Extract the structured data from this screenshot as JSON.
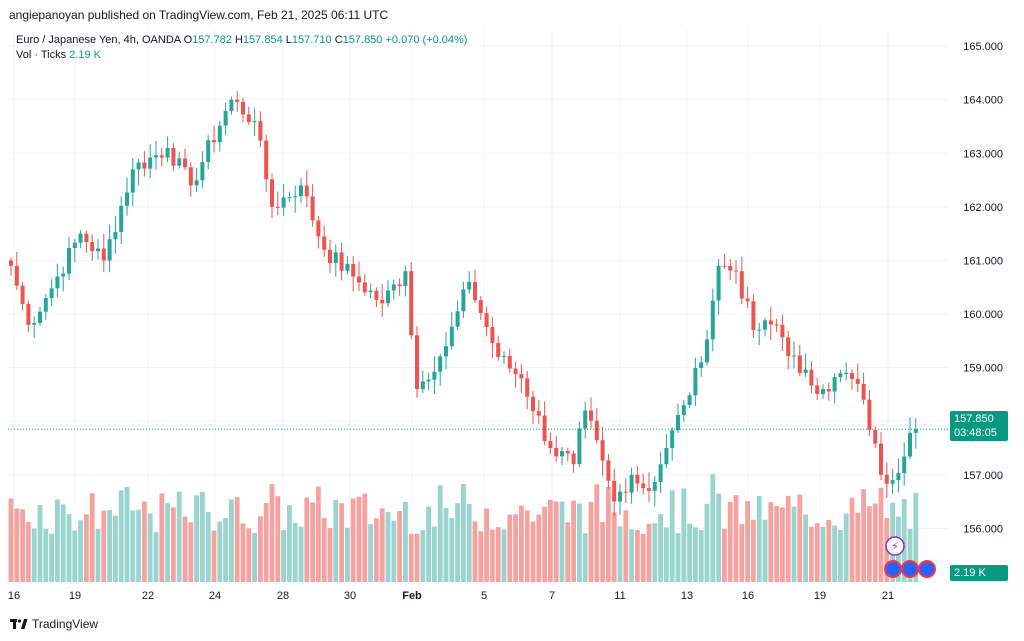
{
  "publisher": "angiepanoyan published on TradingView.com, Feb 21, 2025 06:11 UTC",
  "legend": {
    "symbol": "Euro / Japanese Yen, 4h, OANDA",
    "o_label": "O",
    "o_value": "157.782",
    "h_label": "H",
    "h_value": "157.854",
    "l_label": "L",
    "l_value": "157.710",
    "c_label": "C",
    "c_value": "157.850",
    "change": "+0.070 (+0.04%)",
    "vol_label": "Vol · Ticks",
    "vol_value": "2.19 K"
  },
  "price_tag": {
    "price": "157.850",
    "countdown": "03:48:05"
  },
  "volume_tag": "2.19 K",
  "footer": "TradingView",
  "colors": {
    "up": "#26a69a",
    "down": "#ef5350",
    "vol_up": "#99d4ce",
    "vol_down": "#f5a3a1",
    "accent": "#089981"
  },
  "chart_data": {
    "type": "candlestick",
    "title": "Euro / Japanese Yen, 4h, OANDA",
    "y_ticks": [
      "165.000",
      "164.000",
      "163.000",
      "162.000",
      "161.000",
      "160.000",
      "159.000",
      "158.000",
      "157.000",
      "156.000"
    ],
    "ylim": [
      155.0,
      165.3
    ],
    "x_ticks": [
      "16",
      "19",
      "22",
      "24",
      "28",
      "30",
      "Feb",
      "5",
      "7",
      "11",
      "13",
      "16",
      "19",
      "21"
    ],
    "last_price": 157.85,
    "anchors": [
      [
        0,
        160.9
      ],
      [
        3,
        159.8
      ],
      [
        6,
        160.3
      ],
      [
        12,
        161.5
      ],
      [
        16,
        161.0
      ],
      [
        21,
        162.7
      ],
      [
        27,
        163.1
      ],
      [
        31,
        162.4
      ],
      [
        38,
        164.0
      ],
      [
        42,
        163.6
      ],
      [
        45,
        162.0
      ],
      [
        50,
        162.4
      ],
      [
        54,
        161.2
      ],
      [
        59,
        160.7
      ],
      [
        64,
        160.2
      ],
      [
        68,
        160.8
      ],
      [
        70,
        158.6
      ],
      [
        75,
        159.4
      ],
      [
        79,
        160.6
      ],
      [
        84,
        159.2
      ],
      [
        88,
        158.8
      ],
      [
        93,
        157.5
      ],
      [
        97,
        157.2
      ],
      [
        99,
        158.2
      ],
      [
        104,
        156.5
      ],
      [
        107,
        157.0
      ],
      [
        110,
        156.7
      ],
      [
        113,
        157.5
      ],
      [
        116,
        158.3
      ],
      [
        119,
        159.1
      ],
      [
        122,
        160.9
      ],
      [
        125,
        160.8
      ],
      [
        128,
        159.7
      ],
      [
        132,
        159.8
      ],
      [
        136,
        158.9
      ],
      [
        140,
        158.6
      ],
      [
        144,
        158.9
      ],
      [
        147,
        158.4
      ],
      [
        150,
        157.0
      ],
      [
        152,
        156.9
      ],
      [
        155,
        157.782
      ],
      [
        156,
        157.85
      ]
    ],
    "volume_range": [
      40,
      100
    ]
  }
}
